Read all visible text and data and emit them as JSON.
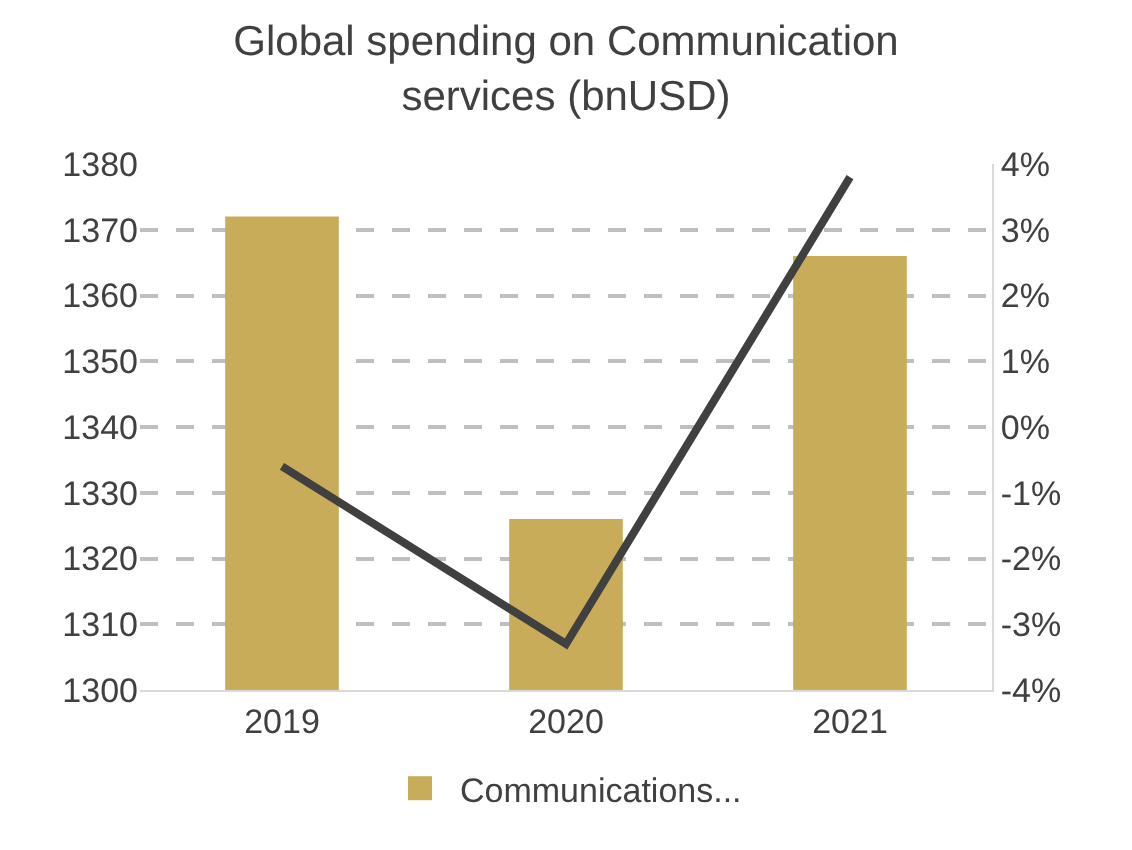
{
  "chart_data": {
    "type": "bar",
    "title": "Global spending on Communication services (bnUSD)",
    "categories": [
      "2019",
      "2020",
      "2021"
    ],
    "series": [
      {
        "name": "Communications...",
        "color": "#c8ac5a",
        "values": [
          1372,
          1326,
          1366
        ]
      },
      {
        "type": "line",
        "axis": "y2",
        "color": "#404040",
        "values": [
          -0.6,
          -3.3,
          3.8
        ]
      }
    ],
    "ylim": [
      1300,
      1380
    ],
    "yticks": [
      1300,
      1310,
      1320,
      1330,
      1340,
      1350,
      1360,
      1370,
      1380
    ],
    "y2lim": [
      -4,
      4
    ],
    "y2ticks": [
      {
        "value": -4,
        "label": "-4%"
      },
      {
        "value": -3,
        "label": "-3%"
      },
      {
        "value": -2,
        "label": "-2%"
      },
      {
        "value": -1,
        "label": "-1%"
      },
      {
        "value": 0,
        "label": "0%"
      },
      {
        "value": 1,
        "label": "1%"
      },
      {
        "value": 2,
        "label": "2%"
      },
      {
        "value": 3,
        "label": "3%"
      },
      {
        "value": 4,
        "label": "4%"
      }
    ],
    "grid": "y",
    "legend": "bottom",
    "marker": "none",
    "line_style": "solid"
  }
}
